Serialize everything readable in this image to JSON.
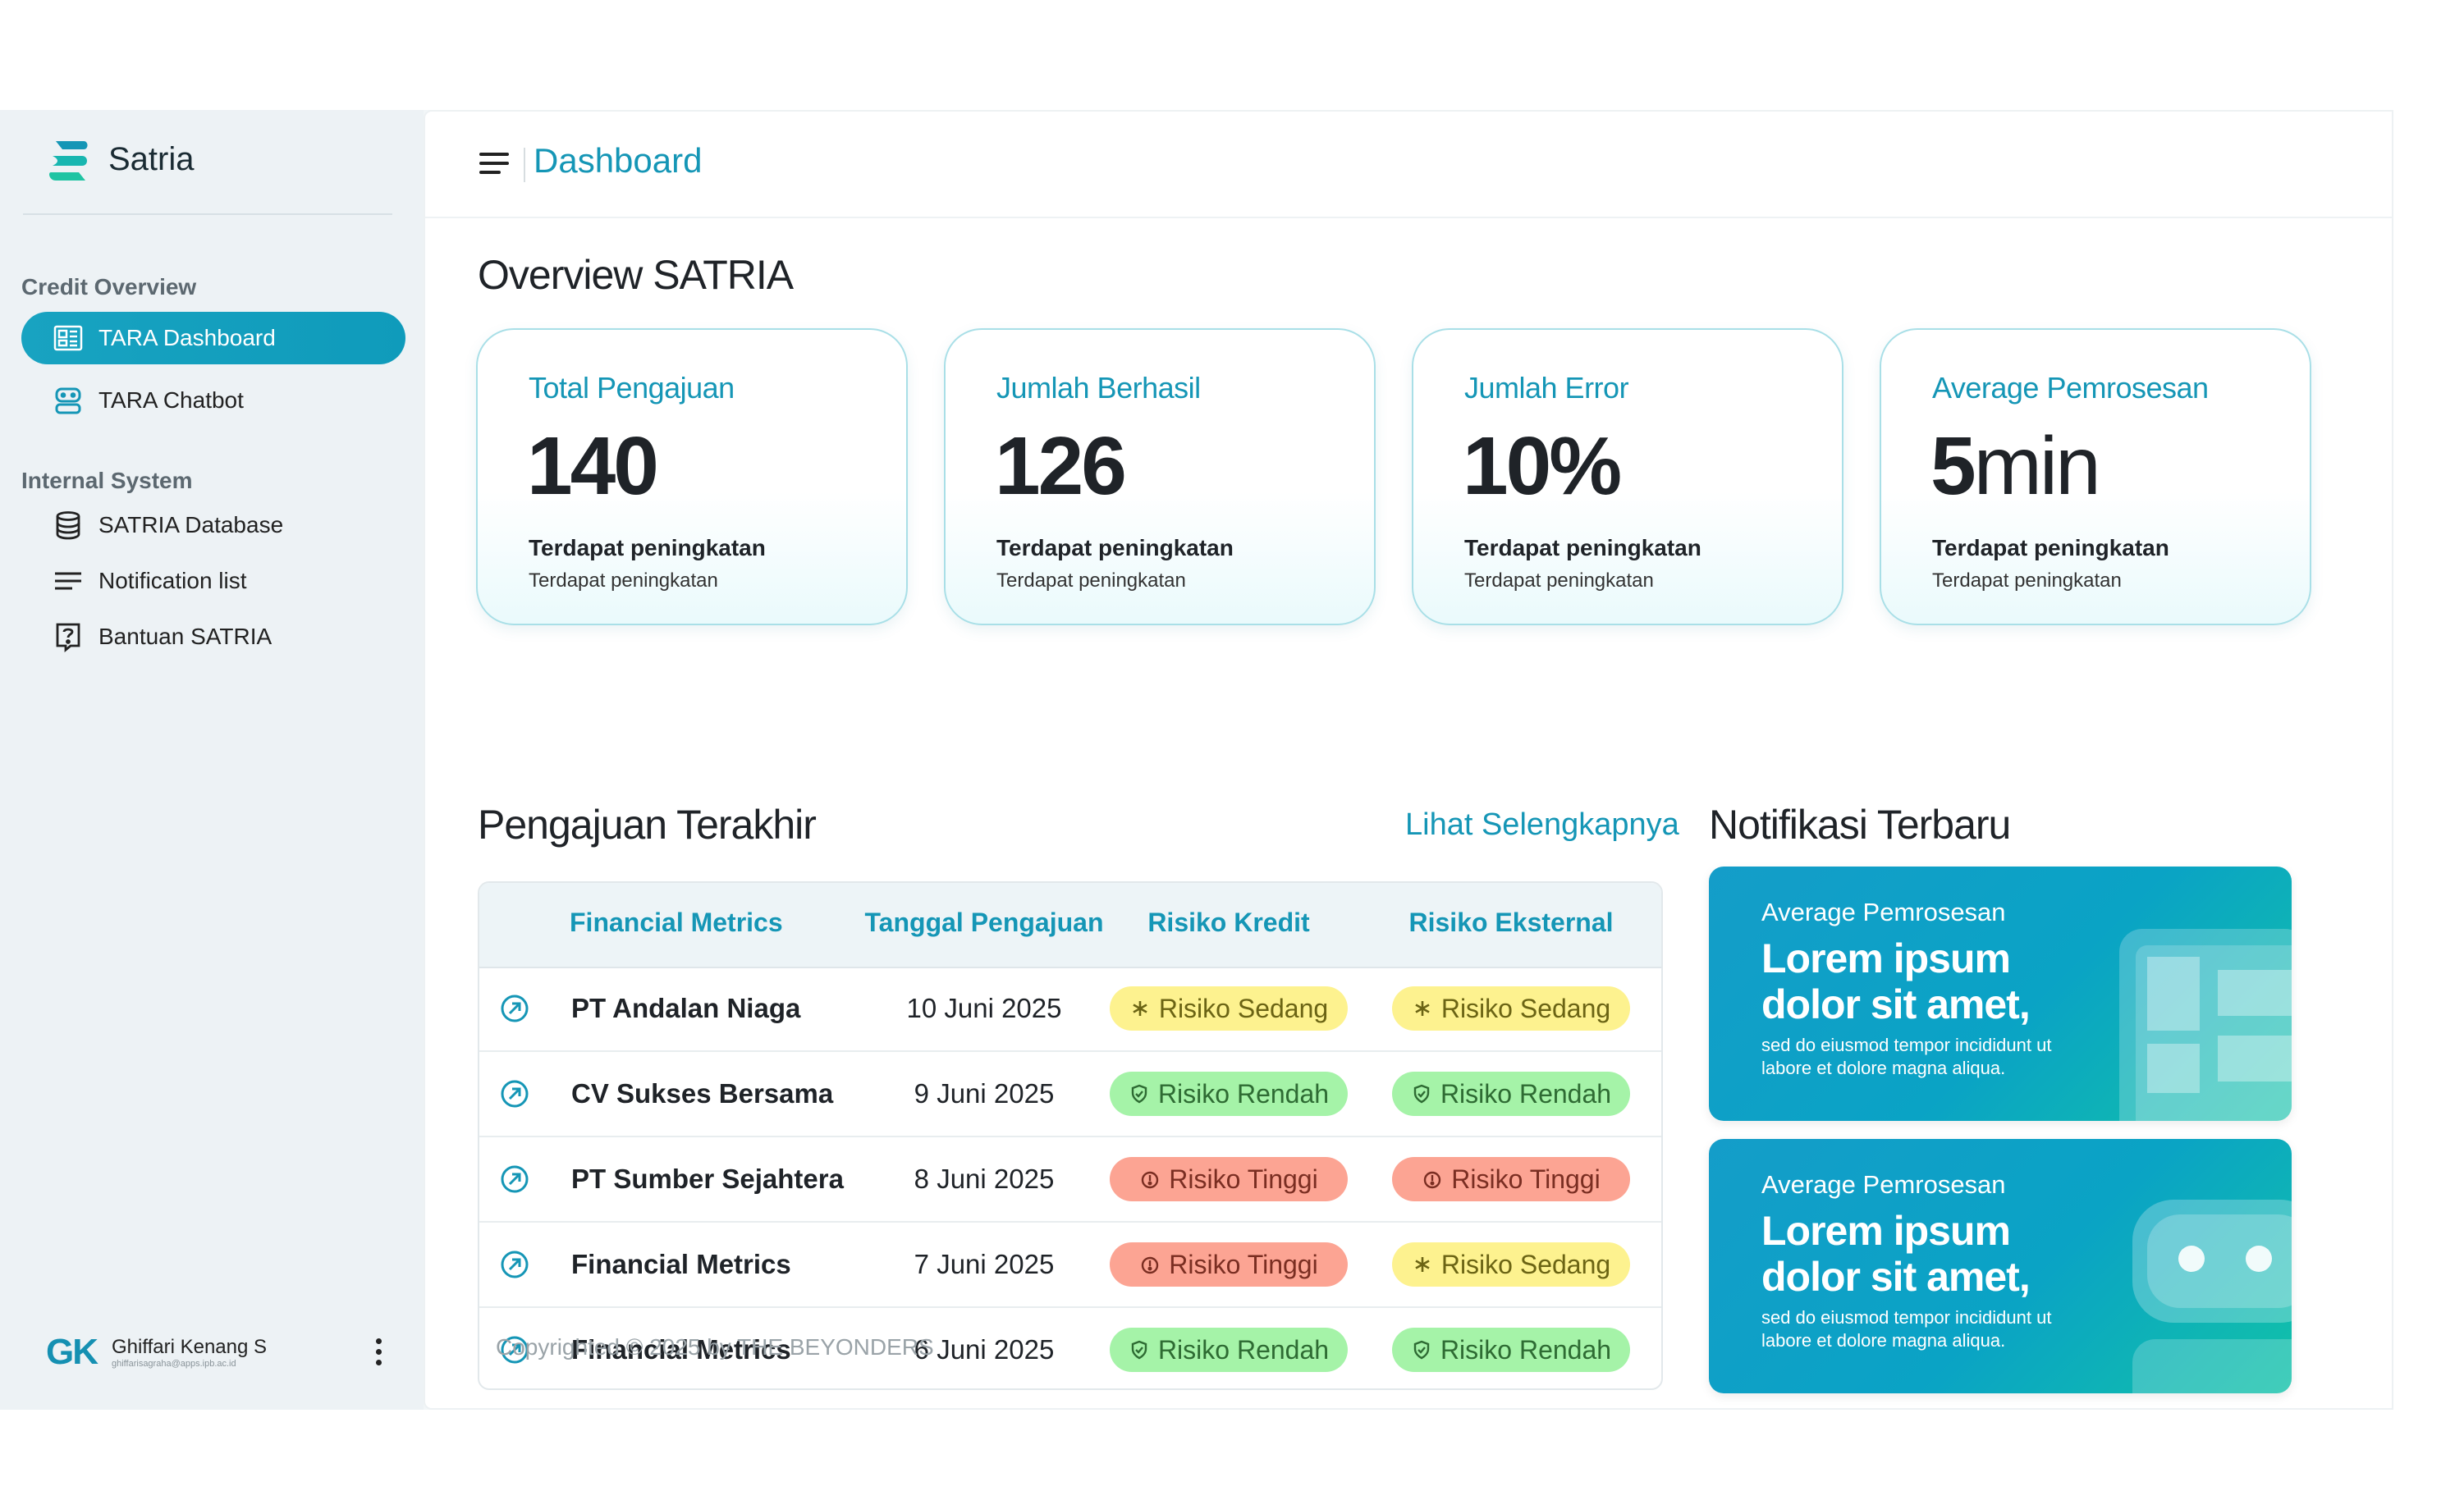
{
  "app": {
    "name": "Satria"
  },
  "sidebar": {
    "sections": [
      {
        "label": "Credit Overview"
      },
      {
        "label": "Internal System"
      }
    ],
    "items": [
      {
        "label": "TARA Dashboard",
        "icon": "dashboard-icon",
        "active": true
      },
      {
        "label": "TARA Chatbot",
        "icon": "chatbot-icon",
        "active": false
      },
      {
        "label": "SATRIA Database",
        "icon": "database-icon",
        "active": false
      },
      {
        "label": "Notification list",
        "icon": "list-icon",
        "active": false
      },
      {
        "label": "Bantuan SATRIA",
        "icon": "help-icon",
        "active": false
      }
    ],
    "user": {
      "initials": "GK",
      "name": "Ghiffari Kenang S",
      "email": "ghiffarisagraha@apps.ipb.ac.id"
    }
  },
  "header": {
    "title": "Dashboard"
  },
  "overview": {
    "title": "Overview SATRIA",
    "cards": [
      {
        "label": "Total Pengajuan",
        "value": "140",
        "unit": "",
        "note": "Terdapat peningkatan",
        "sub": "Terdapat peningkatan"
      },
      {
        "label": "Jumlah Berhasil",
        "value": "126",
        "unit": "",
        "note": "Terdapat peningkatan",
        "sub": "Terdapat peningkatan"
      },
      {
        "label": "Jumlah Error",
        "value": "10%",
        "unit": "",
        "note": "Terdapat peningkatan",
        "sub": "Terdapat peningkatan"
      },
      {
        "label": "Average Pemrosesan",
        "value": "5",
        "unit": "min",
        "note": "Terdapat peningkatan",
        "sub": "Terdapat peningkatan"
      }
    ]
  },
  "recent": {
    "title": "Pengajuan Terakhir",
    "see_more": "Lihat Selengkapnya",
    "columns": [
      "Financial Metrics",
      "Tanggal Pengajuan",
      "Risiko Kredit",
      "Risiko Eksternal"
    ],
    "rows": [
      {
        "name": "PT Andalan Niaga",
        "date": "10 Juni 2025",
        "kredit": "Risiko Sedang",
        "kredit_level": "sedang",
        "eksternal": "Risiko Sedang",
        "eksternal_level": "sedang"
      },
      {
        "name": "CV Sukses Bersama",
        "date": "9 Juni 2025",
        "kredit": "Risiko Rendah",
        "kredit_level": "rendah",
        "eksternal": "Risiko Rendah",
        "eksternal_level": "rendah"
      },
      {
        "name": "PT Sumber Sejahtera",
        "date": "8 Juni 2025",
        "kredit": "Risiko Tinggi",
        "kredit_level": "tinggi",
        "eksternal": "Risiko Tinggi",
        "eksternal_level": "tinggi"
      },
      {
        "name": "Financial Metrics",
        "date": "7 Juni 2025",
        "kredit": "Risiko Tinggi",
        "kredit_level": "tinggi",
        "eksternal": "Risiko Sedang",
        "eksternal_level": "sedang"
      },
      {
        "name": "Financial Metrics",
        "date": "6 Juni 2025",
        "kredit": "Risiko Rendah",
        "kredit_level": "rendah",
        "eksternal": "Risiko Rendah",
        "eksternal_level": "rendah"
      }
    ]
  },
  "notifications": {
    "title": "Notifikasi Terbaru",
    "items": [
      {
        "label": "Average Pemrosesan",
        "title": "Lorem ipsum dolor sit amet,",
        "desc": "sed do eiusmod tempor incididunt ut labore et dolore magna aliqua.",
        "art": "dashboard-art-icon"
      },
      {
        "label": "Average Pemrosesan",
        "title": "Lorem ipsum dolor sit amet,",
        "desc": "sed do eiusmod tempor incididunt ut labore et dolore magna aliqua.",
        "art": "chatbot-art-icon"
      }
    ]
  },
  "footer": {
    "copyright": "Copyrighted © 2025 by THE BEYONDERS"
  },
  "colors": {
    "accent": "#1596b6",
    "active_nav": "#18a3c1",
    "risk_sedang": "#fdf28f",
    "risk_rendah": "#a5f3a8",
    "risk_tinggi": "#fca493"
  }
}
